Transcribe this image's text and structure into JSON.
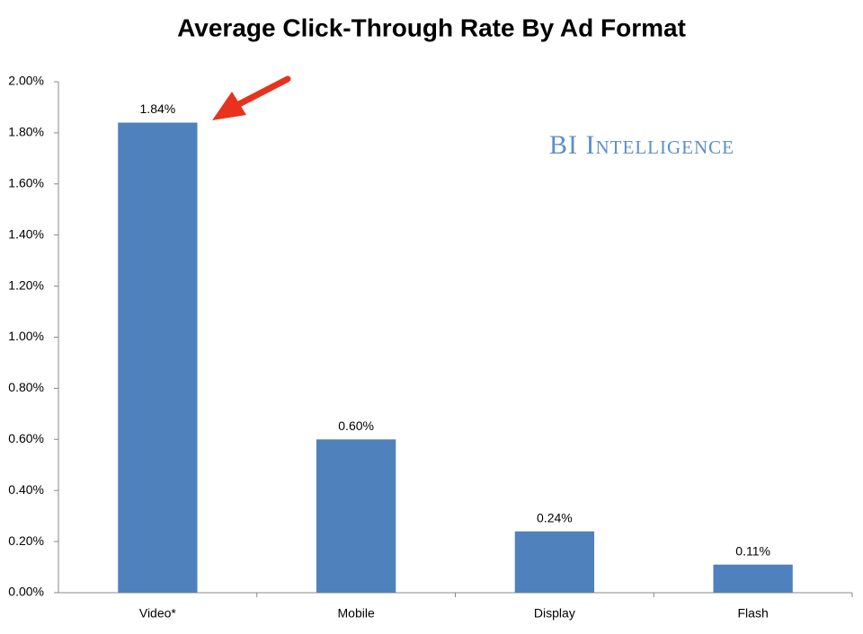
{
  "chart_data": {
    "type": "bar",
    "title": "Average Click-Through Rate By Ad Format",
    "watermark": "BI Intelligence",
    "categories": [
      "Video*",
      "Mobile",
      "Display",
      "Flash"
    ],
    "values": [
      1.84,
      0.6,
      0.24,
      0.11
    ],
    "value_labels": [
      "1.84%",
      "0.60%",
      "0.24%",
      "0.11%"
    ],
    "color": "#4f81bd",
    "ylim": [
      0,
      2
    ],
    "yticks": [
      {
        "value": 0,
        "label": "0.00%"
      },
      {
        "value": 0.2,
        "label": "0.20%"
      },
      {
        "value": 0.4,
        "label": "0.40%"
      },
      {
        "value": 0.6,
        "label": "0.60%"
      },
      {
        "value": 0.8,
        "label": "0.80%"
      },
      {
        "value": 1,
        "label": "1.00%"
      },
      {
        "value": 1.2,
        "label": "1.20%"
      },
      {
        "value": 1.4,
        "label": "1.40%"
      },
      {
        "value": 1.6,
        "label": "1.60%"
      },
      {
        "value": 1.8,
        "label": "1.80%"
      },
      {
        "value": 2,
        "label": "2.00%"
      }
    ],
    "grid": false
  }
}
